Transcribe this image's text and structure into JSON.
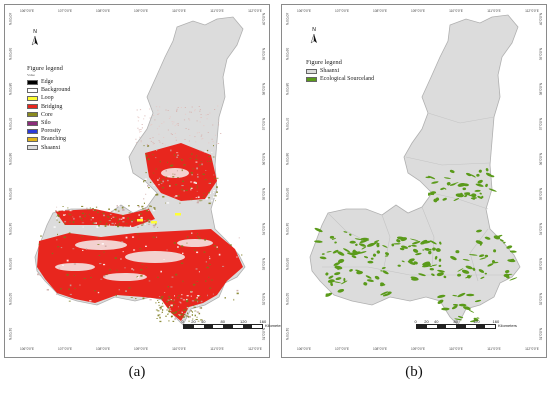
{
  "panel_a": {
    "label": "(a)",
    "north_label": "N",
    "legend": {
      "title": "Figure legend",
      "subtitle": "Value",
      "items": [
        {
          "label": "Edge",
          "color": "#000000"
        },
        {
          "label": "Background",
          "color": "#ffffff"
        },
        {
          "label": "Loop",
          "color": "#ffff33"
        },
        {
          "label": "Bridging",
          "color": "#e8261e"
        },
        {
          "label": "Core",
          "color": "#8a8a1e"
        },
        {
          "label": "Silo",
          "color": "#8b2d7a"
        },
        {
          "label": "Porosity",
          "color": "#2b3ad8"
        },
        {
          "label": "Branching",
          "color": "#e0b41a"
        },
        {
          "label": "Shaanxi",
          "color": "#dcdcdc"
        }
      ]
    },
    "scale": {
      "ticks": [
        "0",
        "20",
        "40",
        "80",
        "120",
        "160"
      ],
      "unit": "Kilometers"
    },
    "lon_labels": [
      "106°0'0\"E",
      "107°0'0\"E",
      "108°0'0\"E",
      "109°0'0\"E",
      "110°0'0\"E",
      "111°0'0\"E",
      "112°0'0\"E"
    ],
    "lat_labels": [
      "40°0'0\"N",
      "39°0'0\"N",
      "38°0'0\"N",
      "37°0'0\"N",
      "36°0'0\"N",
      "35°0'0\"N",
      "34°0'0\"N",
      "33°0'0\"N",
      "32°0'0\"N",
      "31°0'0\"N"
    ]
  },
  "panel_b": {
    "label": "(b)",
    "north_label": "N",
    "legend": {
      "title": "Figure legend",
      "items": [
        {
          "label": "Shaanxi",
          "color": "#dcdcdc"
        },
        {
          "label": "Ecological Sourceland",
          "color": "#5a9a1a"
        }
      ]
    },
    "scale": {
      "ticks": [
        "0",
        "20",
        "40",
        "80",
        "120",
        "160"
      ],
      "unit": "Kilometers"
    },
    "lon_labels": [
      "106°0'0\"E",
      "107°0'0\"E",
      "108°0'0\"E",
      "109°0'0\"E",
      "110°0'0\"E",
      "111°0'0\"E",
      "112°0'0\"E"
    ],
    "lat_labels": [
      "40°0'0\"N",
      "39°0'0\"N",
      "38°0'0\"N",
      "37°0'0\"N",
      "36°0'0\"N",
      "35°0'0\"N",
      "34°0'0\"N",
      "33°0'0\"N",
      "32°0'0\"N",
      "31°0'0\"N"
    ]
  },
  "colors": {
    "province_fill": "#dcdcdc",
    "province_stroke": "#b0b0b0",
    "bridging": "#e8261e",
    "core": "#7a7a1a",
    "source": "#5a9a1a",
    "loop": "#ffff33"
  }
}
